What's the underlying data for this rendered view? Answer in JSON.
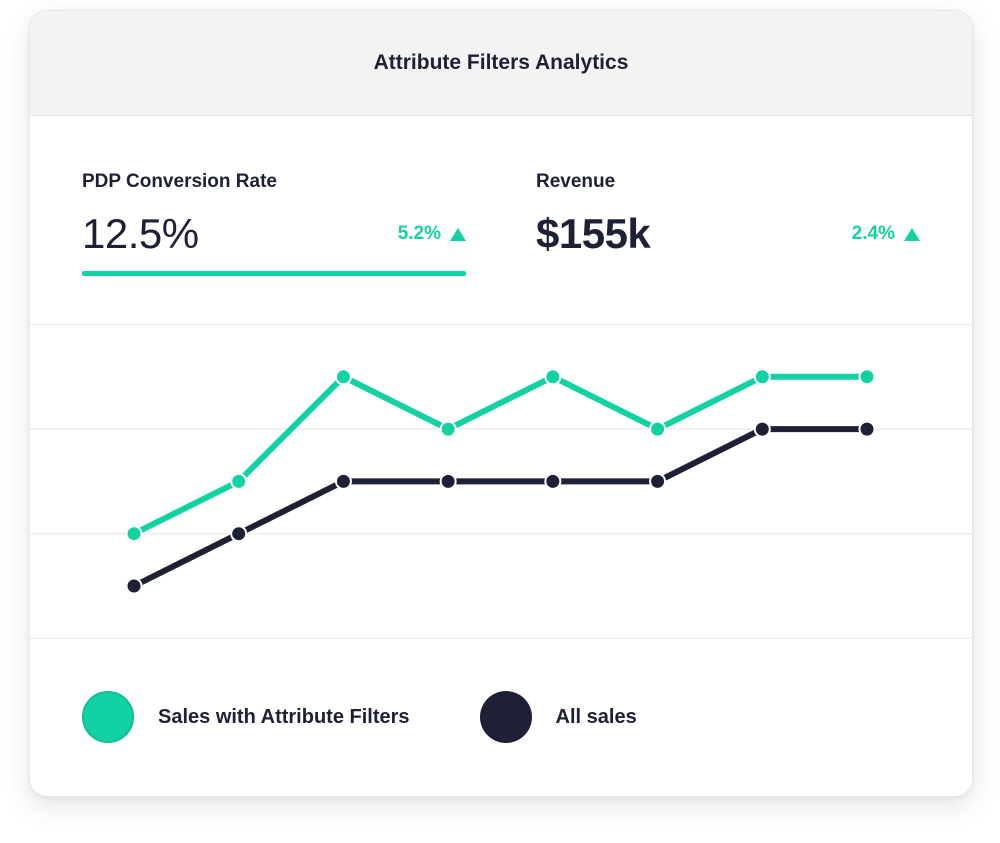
{
  "title": "Attribute Filters Analytics",
  "colors": {
    "accent": "#11d2a2",
    "dark": "#1e2035",
    "grid": "#ececee"
  },
  "metrics": [
    {
      "label": "PDP Conversion Rate",
      "value": "12.5%",
      "change": "5.2%",
      "trend": "up",
      "selected": true
    },
    {
      "label": "Revenue",
      "value": "$155k",
      "change": "2.4%",
      "trend": "up",
      "selected": false
    }
  ],
  "chart_data": {
    "type": "line",
    "x": [
      1,
      2,
      3,
      4,
      5,
      6,
      7,
      8
    ],
    "ylim": [
      0,
      6
    ],
    "grid": true,
    "legend_position": "bottom",
    "series": [
      {
        "name": "Sales with Attribute Filters",
        "color": "#11d2a2",
        "values": [
          2,
          3,
          5,
          4,
          5,
          4,
          5,
          5
        ]
      },
      {
        "name": "All sales",
        "color": "#1e2035",
        "values": [
          1,
          2,
          3,
          3,
          3,
          3,
          4,
          4
        ]
      }
    ]
  }
}
